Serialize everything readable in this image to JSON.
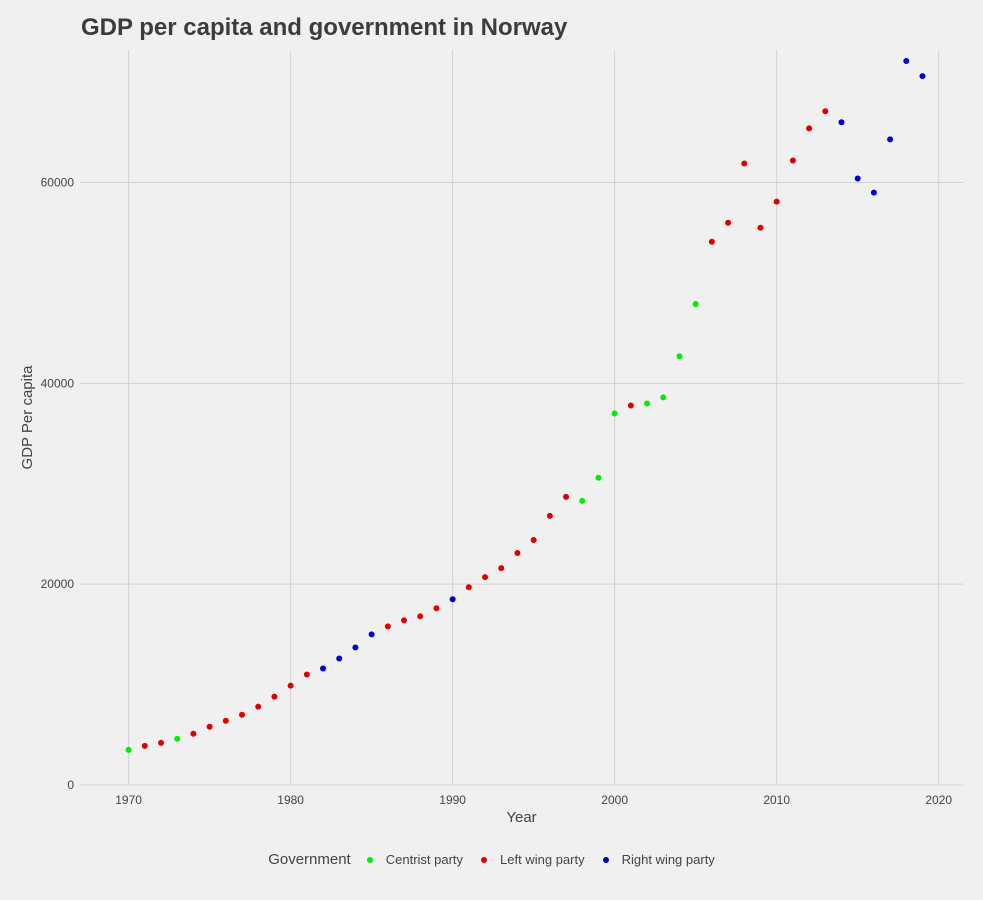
{
  "chart_data": {
    "type": "scatter",
    "title": "GDP per capita and government in Norway",
    "xlabel": "Year",
    "ylabel": "GDP Per capita",
    "xlim": [
      1967,
      2021.5
    ],
    "ylim": [
      0,
      73200
    ],
    "x_ticks": [
      1970,
      1980,
      1990,
      2000,
      2010,
      2020
    ],
    "y_ticks": [
      0,
      20000,
      40000,
      60000
    ],
    "grid": true,
    "legend_position": "bottom",
    "legend_title": "Government",
    "groups": [
      {
        "name": "Centrist party",
        "color": "#00ee00"
      },
      {
        "name": "Left wing party",
        "color": "#e00000"
      },
      {
        "name": "Right wing party",
        "color": "#0000cc"
      }
    ],
    "points": [
      {
        "x": 1970,
        "y": 3500,
        "group": "Centrist party"
      },
      {
        "x": 1971,
        "y": 3900,
        "group": "Left wing party"
      },
      {
        "x": 1972,
        "y": 4200,
        "group": "Left wing party"
      },
      {
        "x": 1973,
        "y": 4600,
        "group": "Centrist party"
      },
      {
        "x": 1974,
        "y": 5100,
        "group": "Left wing party"
      },
      {
        "x": 1975,
        "y": 5800,
        "group": "Left wing party"
      },
      {
        "x": 1976,
        "y": 6400,
        "group": "Left wing party"
      },
      {
        "x": 1977,
        "y": 7000,
        "group": "Left wing party"
      },
      {
        "x": 1978,
        "y": 7800,
        "group": "Left wing party"
      },
      {
        "x": 1979,
        "y": 8800,
        "group": "Left wing party"
      },
      {
        "x": 1980,
        "y": 9900,
        "group": "Left wing party"
      },
      {
        "x": 1981,
        "y": 11000,
        "group": "Left wing party"
      },
      {
        "x": 1982,
        "y": 11600,
        "group": "Right wing party"
      },
      {
        "x": 1983,
        "y": 12600,
        "group": "Right wing party"
      },
      {
        "x": 1984,
        "y": 13700,
        "group": "Right wing party"
      },
      {
        "x": 1985,
        "y": 15000,
        "group": "Right wing party"
      },
      {
        "x": 1986,
        "y": 15800,
        "group": "Left wing party"
      },
      {
        "x": 1987,
        "y": 16400,
        "group": "Left wing party"
      },
      {
        "x": 1988,
        "y": 16800,
        "group": "Left wing party"
      },
      {
        "x": 1989,
        "y": 17600,
        "group": "Left wing party"
      },
      {
        "x": 1990,
        "y": 18500,
        "group": "Right wing party"
      },
      {
        "x": 1991,
        "y": 19700,
        "group": "Left wing party"
      },
      {
        "x": 1992,
        "y": 20700,
        "group": "Left wing party"
      },
      {
        "x": 1993,
        "y": 21600,
        "group": "Left wing party"
      },
      {
        "x": 1994,
        "y": 23100,
        "group": "Left wing party"
      },
      {
        "x": 1995,
        "y": 24400,
        "group": "Left wing party"
      },
      {
        "x": 1996,
        "y": 26800,
        "group": "Left wing party"
      },
      {
        "x": 1997,
        "y": 28700,
        "group": "Left wing party"
      },
      {
        "x": 1998,
        "y": 28300,
        "group": "Centrist party"
      },
      {
        "x": 1999,
        "y": 30600,
        "group": "Centrist party"
      },
      {
        "x": 2000,
        "y": 37000,
        "group": "Centrist party"
      },
      {
        "x": 2001,
        "y": 37800,
        "group": "Left wing party"
      },
      {
        "x": 2002,
        "y": 38000,
        "group": "Centrist party"
      },
      {
        "x": 2003,
        "y": 38600,
        "group": "Centrist party"
      },
      {
        "x": 2004,
        "y": 42700,
        "group": "Centrist party"
      },
      {
        "x": 2005,
        "y": 47900,
        "group": "Centrist party"
      },
      {
        "x": 2006,
        "y": 54100,
        "group": "Left wing party"
      },
      {
        "x": 2007,
        "y": 56000,
        "group": "Left wing party"
      },
      {
        "x": 2008,
        "y": 61900,
        "group": "Left wing party"
      },
      {
        "x": 2009,
        "y": 55500,
        "group": "Left wing party"
      },
      {
        "x": 2010,
        "y": 58100,
        "group": "Left wing party"
      },
      {
        "x": 2011,
        "y": 62200,
        "group": "Left wing party"
      },
      {
        "x": 2012,
        "y": 65400,
        "group": "Left wing party"
      },
      {
        "x": 2013,
        "y": 67100,
        "group": "Left wing party"
      },
      {
        "x": 2014,
        "y": 66000,
        "group": "Right wing party"
      },
      {
        "x": 2015,
        "y": 60400,
        "group": "Right wing party"
      },
      {
        "x": 2016,
        "y": 59000,
        "group": "Right wing party"
      },
      {
        "x": 2017,
        "y": 64300,
        "group": "Right wing party"
      },
      {
        "x": 2018,
        "y": 72100,
        "group": "Right wing party"
      },
      {
        "x": 2019,
        "y": 70600,
        "group": "Right wing party"
      }
    ]
  }
}
